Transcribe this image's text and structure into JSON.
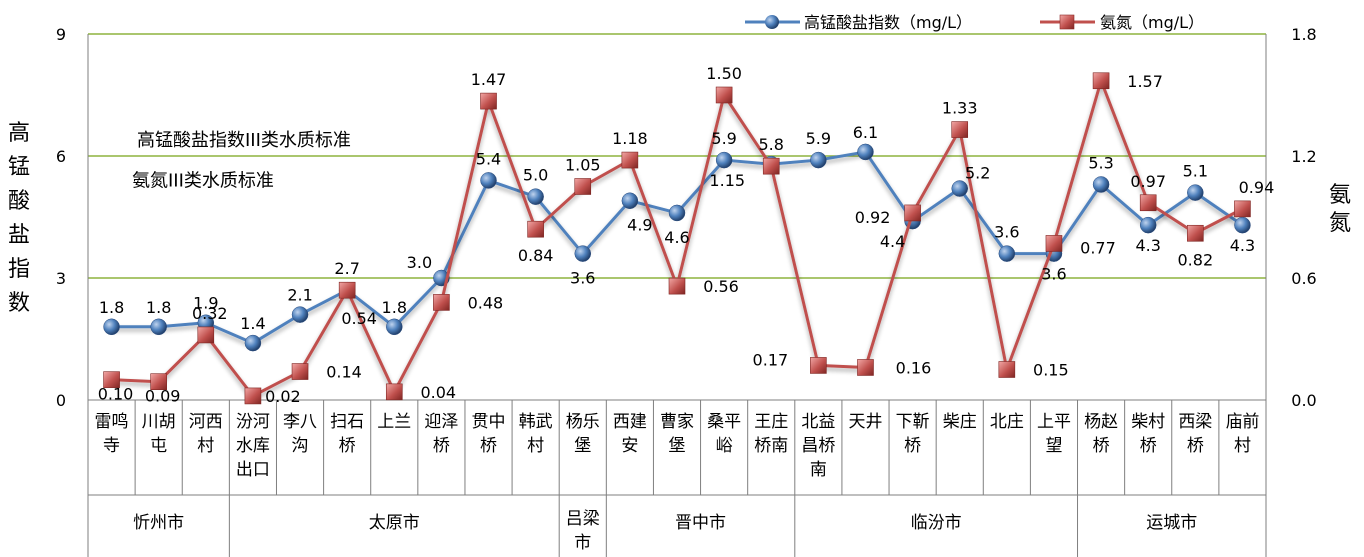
{
  "chart_data": {
    "type": "line",
    "title": "",
    "ylabel_left": "高锰酸盐指数",
    "ylabel_right": "氨氮",
    "ylim_left": [
      0,
      9
    ],
    "ylim_right": [
      0,
      1.8
    ],
    "yticks_left": [
      "0",
      "3",
      "6",
      "9"
    ],
    "yticks_right": [
      "0.0",
      "0.6",
      "1.2",
      "1.8"
    ],
    "categories": [
      [
        "雷鸣",
        "寺"
      ],
      [
        "川胡",
        "屯"
      ],
      [
        "河西",
        "村"
      ],
      [
        "汾河",
        "水库",
        "出口"
      ],
      [
        "李八",
        "沟"
      ],
      [
        "扫石",
        "桥"
      ],
      [
        "上兰"
      ],
      [
        "迎泽",
        "桥"
      ],
      [
        "贯中",
        "桥"
      ],
      [
        "韩武",
        "村"
      ],
      [
        "杨乐",
        "堡"
      ],
      [
        "西建",
        "安"
      ],
      [
        "曹家",
        "堡"
      ],
      [
        "桑平",
        "峪"
      ],
      [
        "王庄",
        "桥南"
      ],
      [
        "北益",
        "昌桥",
        "南"
      ],
      [
        "天井"
      ],
      [
        "下靳",
        "桥"
      ],
      [
        "柴庄"
      ],
      [
        "北庄"
      ],
      [
        "上平",
        "望"
      ],
      [
        "杨赵",
        "桥"
      ],
      [
        "柴村",
        "桥"
      ],
      [
        "西梁",
        "桥"
      ],
      [
        "庙前",
        "村"
      ]
    ],
    "cities": [
      {
        "name": [
          "忻州市"
        ],
        "start": 0,
        "end": 2
      },
      {
        "name": [
          "太原市"
        ],
        "start": 3,
        "end": 9
      },
      {
        "name": [
          "吕梁",
          "市"
        ],
        "start": 10,
        "end": 10
      },
      {
        "name": [
          "晋中市"
        ],
        "start": 11,
        "end": 14
      },
      {
        "name": [
          "临汾市"
        ],
        "start": 15,
        "end": 20
      },
      {
        "name": [
          "运城市"
        ],
        "start": 21,
        "end": 24
      }
    ],
    "series": [
      {
        "name": "高锰酸盐指数（mg/L）",
        "axis": "left",
        "color": "#4F81BD",
        "marker": "circle",
        "values": [
          1.8,
          1.8,
          1.9,
          1.4,
          2.1,
          2.7,
          1.8,
          3.0,
          5.4,
          5.0,
          3.6,
          4.9,
          4.6,
          5.9,
          5.8,
          5.9,
          6.1,
          4.4,
          5.2,
          3.6,
          3.6,
          5.3,
          4.3,
          5.1,
          4.3
        ],
        "labels": [
          "1.8",
          "1.8",
          "1.9",
          "1.4",
          "2.1",
          "2.7",
          "1.8",
          "3.0",
          "5.4",
          "5.0",
          "3.6",
          "4.9",
          "4.6",
          "5.9",
          "5.8",
          "5.9",
          "6.1",
          "4.4",
          "5.2",
          "3.6",
          "3.6",
          "5.3",
          "4.3",
          "5.1",
          "4.3"
        ]
      },
      {
        "name": "氨氮（mg/L）",
        "axis": "right",
        "color": "#C0504D",
        "marker": "square",
        "values": [
          0.1,
          0.09,
          0.32,
          0.02,
          0.14,
          0.54,
          0.04,
          0.48,
          1.47,
          0.84,
          1.05,
          1.18,
          0.56,
          1.5,
          1.15,
          0.17,
          0.16,
          0.92,
          1.33,
          0.15,
          0.77,
          1.57,
          0.97,
          0.82,
          0.94
        ],
        "labels": [
          "0.10",
          "0.09",
          "0.32",
          "0.02",
          "0.14",
          "0.54",
          "0.04",
          "0.48",
          "1.47",
          "0.84",
          "1.05",
          "1.18",
          "0.56",
          "1.50",
          "1.15",
          "0.17",
          "0.16",
          "0.92",
          "1.33",
          "0.15",
          "0.77",
          "1.57",
          "0.97",
          "0.82",
          "0.94"
        ]
      }
    ],
    "reference_lines": [
      {
        "label": "高锰酸盐指数III类水质标准",
        "axis": "left",
        "value": 6,
        "color": "#8DB33F"
      },
      {
        "label": "氨氮III类水质标准",
        "axis": "right",
        "value": 1.0,
        "color": "#C0504D"
      }
    ],
    "grid_color": "#8DB33F",
    "legend_position": "top-right"
  }
}
